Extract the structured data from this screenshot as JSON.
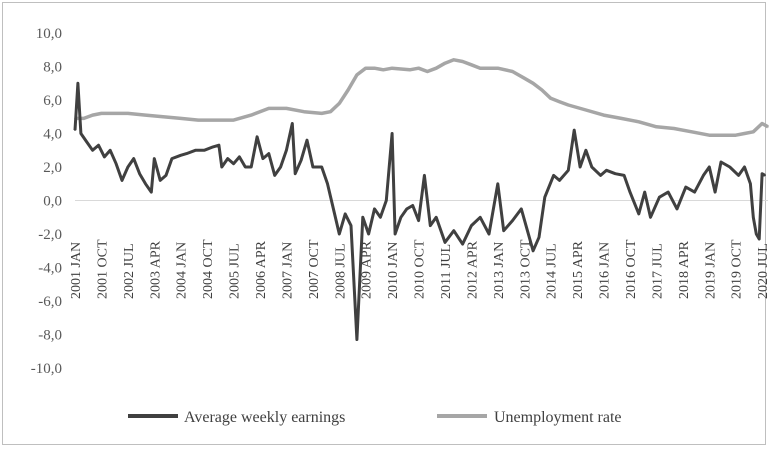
{
  "chart_data": {
    "type": "line",
    "title": "",
    "xlabel": "",
    "ylabel": "",
    "ylim": [
      -10,
      10
    ],
    "y_ticks": [
      "10,0",
      "8,0",
      "6,0",
      "4,0",
      "2,0",
      "0,0",
      "-2,0",
      "-4,0",
      "-6,0",
      "-8,0",
      "-10,0"
    ],
    "x_ticks": [
      "2001 JAN",
      "2001 OCT",
      "2002 JUL",
      "2003 APR",
      "2004 JAN",
      "2004 OCT",
      "2005 JUL",
      "2006 APR",
      "2007 JAN",
      "2007 OCT",
      "2008 JUL",
      "2009 APR",
      "2010 JAN",
      "2010 OCT",
      "2011 JUL",
      "2012 APR",
      "2013 JAN",
      "2013 OCT",
      "2014 JUL",
      "2015 APR",
      "2016 JAN",
      "2016 OCT",
      "2017 JUL",
      "2018 APR",
      "2019 JAN",
      "2019 OCT",
      "2020 JUL"
    ],
    "x_range": [
      "2001-01",
      "2020-09"
    ],
    "grid": false,
    "legend_position": "bottom",
    "series": [
      {
        "name": "Average weekly earnings",
        "color": "#404040",
        "points": [
          [
            "2001-01",
            4.2
          ],
          [
            "2001-02",
            7.0
          ],
          [
            "2001-03",
            4.0
          ],
          [
            "2001-05",
            3.5
          ],
          [
            "2001-07",
            3.0
          ],
          [
            "2001-09",
            3.3
          ],
          [
            "2001-11",
            2.6
          ],
          [
            "2002-01",
            3.0
          ],
          [
            "2002-03",
            2.2
          ],
          [
            "2002-05",
            1.2
          ],
          [
            "2002-07",
            2.0
          ],
          [
            "2002-09",
            2.5
          ],
          [
            "2002-11",
            1.6
          ],
          [
            "2003-01",
            1.0
          ],
          [
            "2003-03",
            0.5
          ],
          [
            "2003-04",
            2.5
          ],
          [
            "2003-06",
            1.2
          ],
          [
            "2003-08",
            1.5
          ],
          [
            "2003-10",
            2.5
          ],
          [
            "2004-01",
            2.7
          ],
          [
            "2004-03",
            2.8
          ],
          [
            "2004-06",
            3.0
          ],
          [
            "2004-09",
            3.0
          ],
          [
            "2004-12",
            3.2
          ],
          [
            "2005-02",
            3.3
          ],
          [
            "2005-03",
            2.0
          ],
          [
            "2005-05",
            2.5
          ],
          [
            "2005-07",
            2.2
          ],
          [
            "2005-09",
            2.6
          ],
          [
            "2005-11",
            2.0
          ],
          [
            "2006-01",
            2.0
          ],
          [
            "2006-03",
            3.8
          ],
          [
            "2006-05",
            2.5
          ],
          [
            "2006-07",
            2.8
          ],
          [
            "2006-09",
            1.5
          ],
          [
            "2006-11",
            2.0
          ],
          [
            "2007-01",
            3.0
          ],
          [
            "2007-03",
            4.6
          ],
          [
            "2007-04",
            1.6
          ],
          [
            "2007-06",
            2.4
          ],
          [
            "2007-08",
            3.6
          ],
          [
            "2007-10",
            2.0
          ],
          [
            "2008-01",
            2.0
          ],
          [
            "2008-03",
            1.0
          ],
          [
            "2008-05",
            -0.5
          ],
          [
            "2008-07",
            -2.0
          ],
          [
            "2008-09",
            -0.8
          ],
          [
            "2008-11",
            -1.5
          ],
          [
            "2009-01",
            -8.3
          ],
          [
            "2009-03",
            -1.0
          ],
          [
            "2009-05",
            -2.0
          ],
          [
            "2009-07",
            -0.5
          ],
          [
            "2009-09",
            -1.0
          ],
          [
            "2009-11",
            0.0
          ],
          [
            "2010-01",
            4.0
          ],
          [
            "2010-02",
            -2.0
          ],
          [
            "2010-04",
            -1.0
          ],
          [
            "2010-06",
            -0.5
          ],
          [
            "2010-08",
            -0.3
          ],
          [
            "2010-10",
            -1.2
          ],
          [
            "2010-12",
            1.5
          ],
          [
            "2011-02",
            -1.5
          ],
          [
            "2011-04",
            -1.0
          ],
          [
            "2011-07",
            -2.5
          ],
          [
            "2011-10",
            -1.8
          ],
          [
            "2012-01",
            -2.6
          ],
          [
            "2012-04",
            -1.5
          ],
          [
            "2012-07",
            -1.0
          ],
          [
            "2012-10",
            -2.0
          ],
          [
            "2013-01",
            1.0
          ],
          [
            "2013-03",
            -1.8
          ],
          [
            "2013-06",
            -1.2
          ],
          [
            "2013-09",
            -0.5
          ],
          [
            "2014-01",
            -3.0
          ],
          [
            "2014-03",
            -2.2
          ],
          [
            "2014-05",
            0.2
          ],
          [
            "2014-08",
            1.5
          ],
          [
            "2014-10",
            1.2
          ],
          [
            "2015-01",
            1.8
          ],
          [
            "2015-03",
            4.2
          ],
          [
            "2015-05",
            2.0
          ],
          [
            "2015-07",
            3.0
          ],
          [
            "2015-09",
            2.0
          ],
          [
            "2015-12",
            1.5
          ],
          [
            "2016-02",
            1.8
          ],
          [
            "2016-05",
            1.6
          ],
          [
            "2016-08",
            1.5
          ],
          [
            "2016-10",
            0.5
          ],
          [
            "2017-01",
            -0.8
          ],
          [
            "2017-03",
            0.5
          ],
          [
            "2017-05",
            -1.0
          ],
          [
            "2017-08",
            0.2
          ],
          [
            "2017-11",
            0.5
          ],
          [
            "2018-02",
            -0.5
          ],
          [
            "2018-05",
            0.8
          ],
          [
            "2018-08",
            0.5
          ],
          [
            "2018-11",
            1.5
          ],
          [
            "2019-01",
            2.0
          ],
          [
            "2019-03",
            0.5
          ],
          [
            "2019-05",
            2.3
          ],
          [
            "2019-08",
            2.0
          ],
          [
            "2019-11",
            1.5
          ],
          [
            "2020-01",
            2.0
          ],
          [
            "2020-03",
            1.0
          ],
          [
            "2020-04",
            -1.0
          ],
          [
            "2020-05",
            -2.0
          ],
          [
            "2020-06",
            -2.3
          ],
          [
            "2020-07",
            1.6
          ],
          [
            "2020-08",
            1.5
          ]
        ]
      },
      {
        "name": "Unemployment rate",
        "color": "#a6a6a6",
        "points": [
          [
            "2001-01",
            4.9
          ],
          [
            "2001-04",
            4.9
          ],
          [
            "2001-07",
            5.1
          ],
          [
            "2001-10",
            5.2
          ],
          [
            "2002-01",
            5.2
          ],
          [
            "2002-07",
            5.2
          ],
          [
            "2003-01",
            5.1
          ],
          [
            "2003-07",
            5.0
          ],
          [
            "2004-01",
            4.9
          ],
          [
            "2004-07",
            4.8
          ],
          [
            "2005-01",
            4.8
          ],
          [
            "2005-07",
            4.8
          ],
          [
            "2006-01",
            5.1
          ],
          [
            "2006-07",
            5.5
          ],
          [
            "2007-01",
            5.5
          ],
          [
            "2007-07",
            5.3
          ],
          [
            "2008-01",
            5.2
          ],
          [
            "2008-04",
            5.3
          ],
          [
            "2008-07",
            5.8
          ],
          [
            "2008-10",
            6.6
          ],
          [
            "2009-01",
            7.5
          ],
          [
            "2009-04",
            7.9
          ],
          [
            "2009-07",
            7.9
          ],
          [
            "2009-10",
            7.8
          ],
          [
            "2010-01",
            7.9
          ],
          [
            "2010-07",
            7.8
          ],
          [
            "2010-10",
            7.9
          ],
          [
            "2011-01",
            7.7
          ],
          [
            "2011-04",
            7.9
          ],
          [
            "2011-07",
            8.2
          ],
          [
            "2011-10",
            8.4
          ],
          [
            "2012-01",
            8.3
          ],
          [
            "2012-04",
            8.1
          ],
          [
            "2012-07",
            7.9
          ],
          [
            "2013-01",
            7.9
          ],
          [
            "2013-06",
            7.7
          ],
          [
            "2013-10",
            7.3
          ],
          [
            "2014-01",
            7.0
          ],
          [
            "2014-04",
            6.6
          ],
          [
            "2014-07",
            6.1
          ],
          [
            "2014-10",
            5.9
          ],
          [
            "2015-01",
            5.7
          ],
          [
            "2015-07",
            5.4
          ],
          [
            "2016-01",
            5.1
          ],
          [
            "2016-07",
            4.9
          ],
          [
            "2017-01",
            4.7
          ],
          [
            "2017-07",
            4.4
          ],
          [
            "2018-01",
            4.3
          ],
          [
            "2018-07",
            4.1
          ],
          [
            "2019-01",
            3.9
          ],
          [
            "2019-07",
            3.9
          ],
          [
            "2019-10",
            3.9
          ],
          [
            "2020-01",
            4.0
          ],
          [
            "2020-04",
            4.1
          ],
          [
            "2020-07",
            4.6
          ],
          [
            "2020-09",
            4.4
          ]
        ]
      }
    ]
  }
}
